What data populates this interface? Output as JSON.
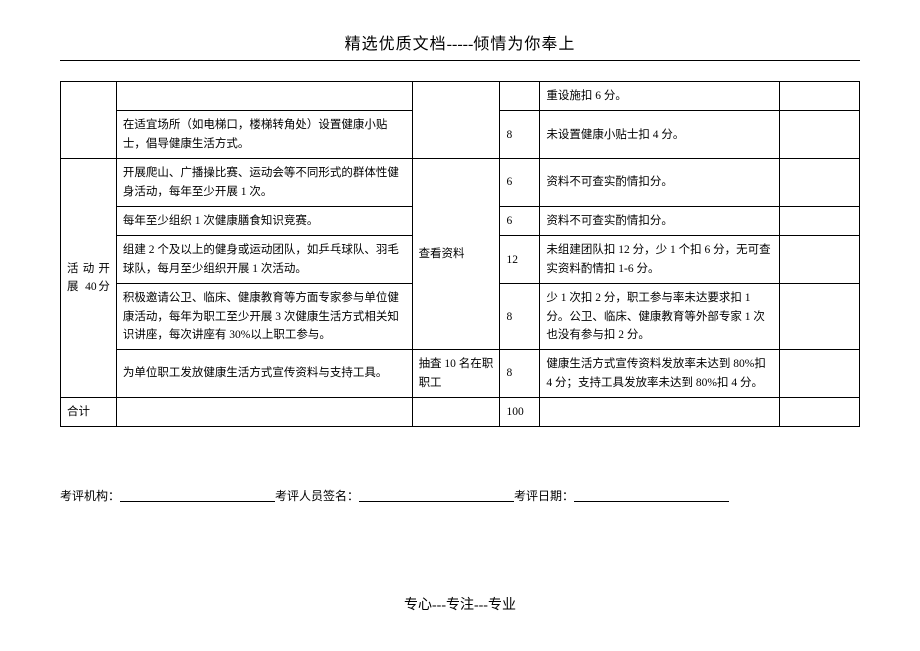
{
  "header": {
    "title_left": "精选优质文档",
    "title_sep": "-----",
    "title_right": "倾情为你奉上"
  },
  "table": {
    "row0": {
      "c4": "重设施扣 6 分。"
    },
    "row1": {
      "c1": "在适宜场所（如电梯口，楼梯转角处）设置健康小贴士，倡导健康生活方式。",
      "c3": "8",
      "c4": "未设置健康小贴士扣 4 分。"
    },
    "category": "活动开展 40分",
    "row2": {
      "c1": "开展爬山、广播操比赛、运动会等不同形式的群体性健身活动，每年至少开展 1 次。",
      "c2": "查看资料",
      "c3": "6",
      "c4": "资料不可查实酌情扣分。"
    },
    "row3": {
      "c1": "每年至少组织 1 次健康膳食知识竞赛。",
      "c3": "6",
      "c4": "资料不可查实酌情扣分。"
    },
    "row4": {
      "c1": "组建 2 个及以上的健身或运动团队，如乒乓球队、羽毛球队，每月至少组织开展 1 次活动。",
      "c3": "12",
      "c4": "未组建团队扣 12 分，少 1 个扣 6 分，无可查实资料酌情扣 1-6 分。"
    },
    "row5": {
      "c1": "积极邀请公卫、临床、健康教育等方面专家参与单位健康活动，每年为职工至少开展 3 次健康生活方式相关知识讲座，每次讲座有 30%以上职工参与。",
      "c3": "8",
      "c4": "少 1 次扣 2 分，职工参与率未达要求扣 1 分。公卫、临床、健康教育等外部专家 1 次也没有参与扣 2 分。"
    },
    "row6": {
      "c1": "为单位职工发放健康生活方式宣传资料与支持工具。",
      "c2": "抽査 10 名在职职工",
      "c3": "8",
      "c4": "健康生活方式宣传资料发放率未达到 80%扣 4 分；支持工具发放率未达到 80%扣 4 分。"
    },
    "total": {
      "c0": "合计",
      "c3": "100"
    }
  },
  "sig": {
    "org_label": "考评机构：",
    "signer_label": "考评人员签名：",
    "date_label": "考评日期："
  },
  "footer": "专心---专注---专业"
}
